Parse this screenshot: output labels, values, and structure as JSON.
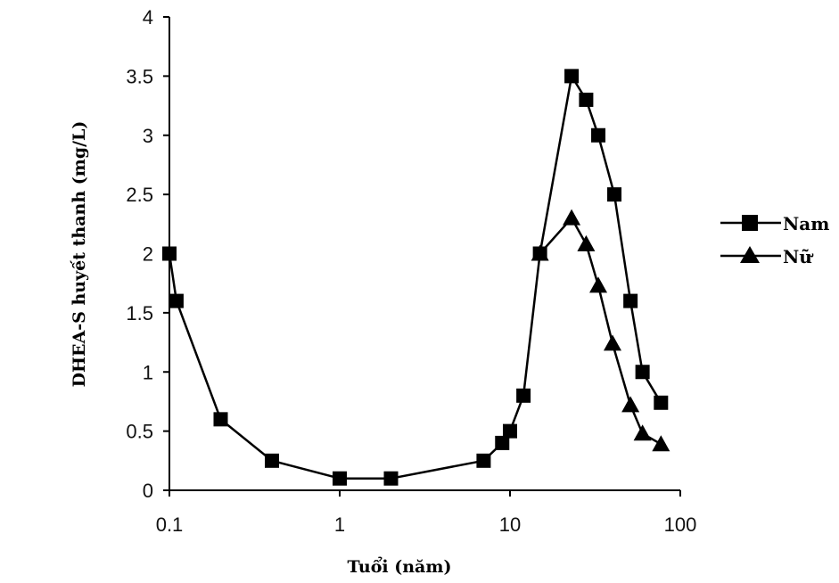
{
  "chart_data": {
    "type": "line",
    "title": "",
    "xlabel": "Tuổi (năm)",
    "ylabel": "DHEA-S huyết thanh (mg/L)",
    "xscale": "log",
    "xlim": [
      0.1,
      100
    ],
    "ylim": [
      0,
      4
    ],
    "xticks": [
      "0.1",
      "1",
      "10",
      "100"
    ],
    "xtick_values": [
      0.1,
      1,
      10,
      100
    ],
    "yticks": [
      "0",
      "0.5",
      "1",
      "1.5",
      "2",
      "2.5",
      "3",
      "3.5",
      "4"
    ],
    "ytick_values": [
      0,
      0.5,
      1,
      1.5,
      2,
      2.5,
      3,
      3.5,
      4
    ],
    "grid": false,
    "legend_position": "right",
    "series": [
      {
        "name": "Nam",
        "marker": "square",
        "x": [
          0.1,
          0.11,
          0.2,
          0.4,
          1,
          2,
          7,
          9,
          10,
          12,
          15,
          23,
          28,
          33,
          41,
          51,
          60,
          77
        ],
        "y": [
          2.0,
          1.6,
          0.6,
          0.25,
          0.1,
          0.1,
          0.25,
          0.4,
          0.5,
          0.8,
          2.0,
          3.5,
          3.3,
          3.0,
          2.5,
          1.6,
          1.0,
          0.74
        ]
      },
      {
        "name": "Nữ",
        "marker": "triangle",
        "x": [
          15,
          23,
          28,
          33,
          40,
          51,
          60,
          77
        ],
        "y": [
          2.0,
          2.3,
          2.08,
          1.73,
          1.24,
          0.72,
          0.48,
          0.39
        ]
      }
    ]
  }
}
